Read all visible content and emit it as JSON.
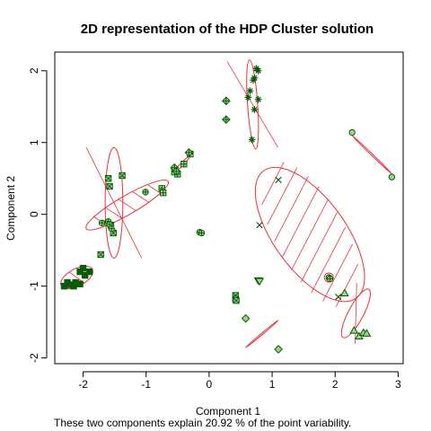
{
  "chart_data": {
    "type": "scatter",
    "title": "2D representation of the HDP Cluster solution",
    "xlabel": "Component 1",
    "ylabel": "Component 2",
    "subtitle": "These two components explain 20.92 % of the point variability.",
    "xlim": [
      -2.45,
      3.08
    ],
    "ylim": [
      -2.08,
      2.26
    ],
    "xticks": [
      -2,
      -1,
      0,
      1,
      2,
      3
    ],
    "yticks": [
      -2,
      -1,
      0,
      1,
      2
    ],
    "grid": false,
    "colors": {
      "points": "#0a5a0a",
      "ellipse": "#e8323c",
      "open_marker_fill": "#9fd38a",
      "axis": "#000000"
    },
    "clusters": [
      {
        "symbol": "filled-square",
        "points": [
          [
            -2.3,
            -1.0
          ],
          [
            -2.25,
            -0.95
          ],
          [
            -2.2,
            -0.98
          ],
          [
            -2.15,
            -1.0
          ],
          [
            -2.12,
            -0.95
          ],
          [
            -2.05,
            -0.97
          ],
          [
            -2.0,
            -0.75
          ],
          [
            -2.05,
            -0.8
          ],
          [
            -1.97,
            -0.85
          ],
          [
            -1.9,
            -0.8
          ]
        ],
        "ellipse": {
          "cx": -2.1,
          "cy": -0.88,
          "rx": 0.28,
          "ry": 0.12,
          "angle_deg": 28
        }
      },
      {
        "symbol": "square-x",
        "points": [
          [
            -1.6,
            0.5
          ],
          [
            -1.58,
            0.39
          ],
          [
            -1.38,
            0.54
          ],
          [
            -1.56,
            -0.15
          ],
          [
            -1.52,
            -0.26
          ],
          [
            -1.72,
            -0.56
          ]
        ],
        "ellipse": {
          "cx": -1.51,
          "cy": 0.16,
          "rx": 0.14,
          "ry": 0.77,
          "angle_deg": 0
        }
      },
      {
        "symbol": "circle-plus",
        "points": [
          [
            -1.62,
            -0.12
          ],
          [
            -1.6,
            -0.1
          ],
          [
            -1.58,
            -0.14
          ],
          [
            -1.55,
            -0.2
          ],
          [
            -1.7,
            -0.12
          ],
          [
            -1.01,
            0.31
          ]
        ],
        "ellipse": {
          "cx": -1.3,
          "cy": 0.13,
          "rx": 0.75,
          "ry": 0.13,
          "angle_deg": 30
        }
      },
      {
        "symbol": "square-plus",
        "points": [
          [
            -0.75,
            0.36
          ],
          [
            -0.73,
            0.3
          ],
          [
            -0.55,
            0.59
          ],
          [
            -0.4,
            0.7
          ],
          [
            -0.3,
            0.84
          ],
          [
            -0.5,
            0.56
          ]
        ],
        "ellipse": {
          "cx": -0.43,
          "cy": 0.7,
          "rx": 0.17,
          "ry": 0.02,
          "angle_deg": 45
        }
      },
      {
        "symbol": "diamond-plus",
        "points": [
          [
            -0.55,
            0.65
          ],
          [
            -0.52,
            0.6
          ],
          [
            -0.32,
            0.86
          ],
          [
            0.27,
            1.58
          ],
          [
            0.27,
            1.32
          ]
        ],
        "ellipse": null
      },
      {
        "symbol": "circle-plus",
        "points": [
          [
            -0.15,
            -0.25
          ],
          [
            -0.12,
            -0.26
          ]
        ],
        "ellipse": null
      },
      {
        "symbol": "asterisk",
        "points": [
          [
            0.75,
            2.03
          ],
          [
            0.78,
            2.0
          ],
          [
            0.72,
            1.9
          ],
          [
            0.7,
            1.87
          ],
          [
            0.65,
            1.72
          ],
          [
            0.62,
            1.63
          ],
          [
            0.72,
            1.46
          ],
          [
            0.78,
            1.6
          ],
          [
            0.68,
            1.04
          ]
        ],
        "ellipse": {
          "cx": 0.69,
          "cy": 1.53,
          "rx": 0.08,
          "ry": 0.62,
          "angle_deg": 4
        }
      },
      {
        "symbol": "square-x",
        "points": [
          [
            0.42,
            -1.13
          ],
          [
            0.42,
            -1.18
          ],
          [
            0.43,
            -1.2
          ]
        ],
        "ellipse": null
      },
      {
        "symbol": "triangle-down",
        "points": [
          [
            0.78,
            -0.92
          ],
          [
            0.8,
            -0.93
          ]
        ],
        "ellipse": null
      },
      {
        "symbol": "cross",
        "points": [
          [
            1.1,
            0.48
          ],
          [
            0.8,
            -0.15
          ],
          [
            2.05,
            -1.15
          ]
        ],
        "ellipse": {
          "cx": 1.6,
          "cy": -0.28,
          "rx": 1.25,
          "ry": 0.5,
          "angle_deg": -54
        }
      },
      {
        "symbol": "circle-plus",
        "points": [
          [
            1.9,
            -0.88
          ],
          [
            1.92,
            -0.9
          ]
        ],
        "ellipse": null
      },
      {
        "symbol": "circle",
        "points": [
          [
            2.27,
            1.14
          ],
          [
            2.9,
            0.52
          ]
        ],
        "ellipse": {
          "cx": 2.585,
          "cy": 0.83,
          "rx": 0.44,
          "ry": 0.01,
          "angle_deg": -44
        }
      },
      {
        "symbol": "triangle-up",
        "points": [
          [
            2.15,
            -1.1
          ],
          [
            2.3,
            -1.62
          ],
          [
            2.38,
            -1.7
          ],
          [
            2.45,
            -1.65
          ],
          [
            2.5,
            -1.66
          ]
        ],
        "ellipse": {
          "cx": 2.33,
          "cy": -1.38,
          "rx": 0.12,
          "ry": 0.38,
          "angle_deg": -28
        }
      },
      {
        "symbol": "diamond",
        "points": [
          [
            0.58,
            -1.45
          ],
          [
            1.1,
            -1.88
          ]
        ],
        "ellipse": {
          "cx": 0.84,
          "cy": -1.665,
          "rx": 0.34,
          "ry": 0.01,
          "angle_deg": 40
        }
      }
    ]
  }
}
